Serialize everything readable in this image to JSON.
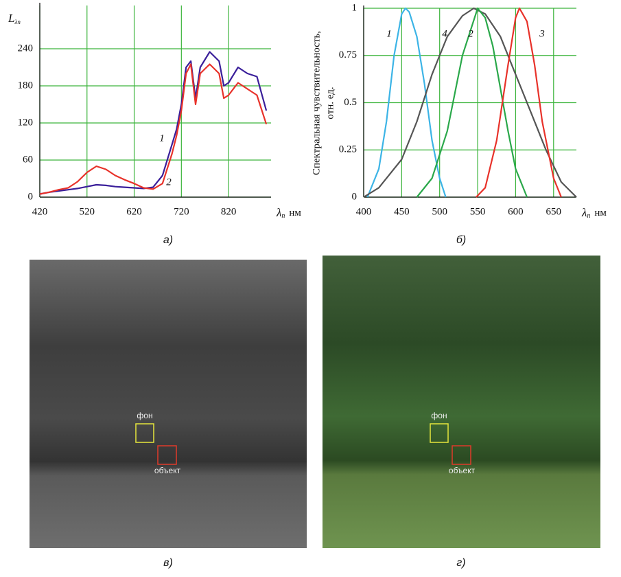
{
  "chart_data": [
    {
      "type": "line",
      "caption": "а)",
      "y_label": "L",
      "y_label_sub": "λп",
      "x_label": "λ",
      "x_label_sub": "п",
      "x_label_unit": "нм",
      "x": [
        420,
        440,
        460,
        480,
        500,
        520,
        540,
        560,
        580,
        600,
        620,
        640,
        660,
        680,
        700,
        710,
        720,
        730,
        740,
        750,
        760,
        780,
        800,
        810,
        820,
        840,
        860,
        880,
        900
      ],
      "series": [
        {
          "name": "1",
          "color": "#3a1f9a",
          "values": [
            5,
            8,
            10,
            12,
            14,
            17,
            20,
            19,
            17,
            16,
            15,
            14,
            16,
            35,
            85,
            110,
            150,
            210,
            220,
            160,
            210,
            235,
            220,
            180,
            185,
            210,
            200,
            195,
            140
          ]
        },
        {
          "name": "2",
          "color": "#e8322a",
          "values": [
            5,
            8,
            12,
            15,
            25,
            40,
            50,
            45,
            35,
            28,
            22,
            15,
            13,
            22,
            70,
            100,
            140,
            200,
            215,
            150,
            200,
            215,
            200,
            160,
            165,
            185,
            175,
            165,
            118
          ]
        }
      ],
      "xlim": [
        420,
        910
      ],
      "ylim": [
        0,
        310
      ],
      "xticks": [
        420,
        520,
        620,
        720,
        820
      ],
      "yticks": [
        0,
        60,
        120,
        180,
        240
      ],
      "grid": true,
      "grid_color": "#3cb43c"
    },
    {
      "type": "line",
      "caption": "б)",
      "y_label": "Спектральная чувствительность,",
      "y_label_2": "отн. ед.",
      "x_label": "λ",
      "x_label_sub": "п",
      "x_label_unit": "нм",
      "series": [
        {
          "name": "1",
          "color": "#3cb4e6",
          "x": [
            405,
            420,
            430,
            440,
            450,
            455,
            460,
            470,
            480,
            490,
            500,
            508
          ],
          "values": [
            0,
            0.15,
            0.4,
            0.75,
            0.97,
            1,
            0.98,
            0.85,
            0.6,
            0.3,
            0.1,
            0
          ]
        },
        {
          "name": "4",
          "color": "#555555",
          "x": [
            400,
            420,
            450,
            470,
            490,
            510,
            530,
            545,
            560,
            580,
            600,
            620,
            640,
            660,
            680
          ],
          "values": [
            0,
            0.05,
            0.2,
            0.4,
            0.65,
            0.85,
            0.96,
            1,
            0.97,
            0.85,
            0.65,
            0.45,
            0.25,
            0.08,
            0
          ]
        },
        {
          "name": "2",
          "color": "#2aa84a",
          "x": [
            470,
            490,
            510,
            530,
            550,
            560,
            570,
            590,
            600,
            615
          ],
          "values": [
            0,
            0.1,
            0.35,
            0.75,
            1,
            0.95,
            0.8,
            0.35,
            0.15,
            0
          ]
        },
        {
          "name": "3",
          "color": "#e8322a",
          "x": [
            548,
            560,
            575,
            590,
            600,
            605,
            615,
            625,
            635,
            650,
            660
          ],
          "values": [
            0,
            0.05,
            0.3,
            0.7,
            0.95,
            1,
            0.93,
            0.7,
            0.4,
            0.1,
            0
          ]
        }
      ],
      "xlim": [
        400,
        680
      ],
      "ylim": [
        0,
        1
      ],
      "xticks": [
        400,
        450,
        500,
        550,
        600,
        650
      ],
      "yticks": [
        0,
        0.25,
        0.5,
        0.75,
        1
      ],
      "grid": true,
      "grid_color": "#3cb43c"
    }
  ],
  "panels": [
    {
      "caption": "в)",
      "background_label": "фон",
      "object_label": "объект"
    },
    {
      "caption": "г)",
      "background_label": "фон",
      "object_label": "объект"
    }
  ]
}
